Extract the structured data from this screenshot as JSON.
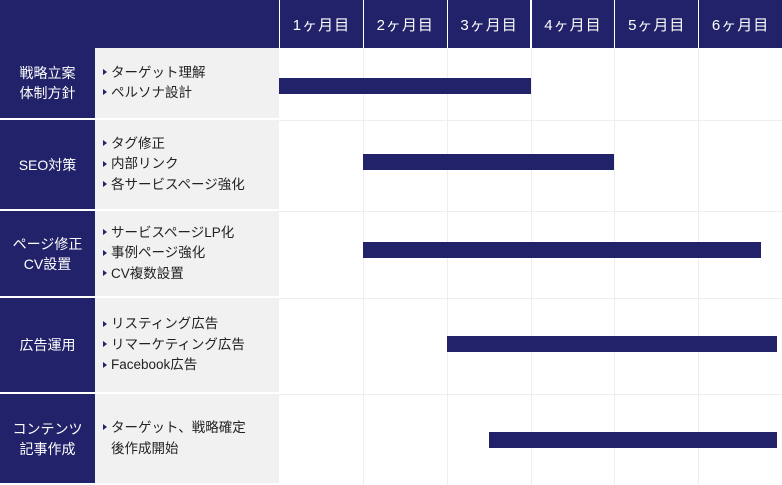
{
  "header": {
    "months": [
      "1ヶ月目",
      "2ヶ月目",
      "3ヶ月目",
      "4ヶ月目",
      "5ヶ月目",
      "6ヶ月目"
    ]
  },
  "rows": [
    {
      "label": "戦略立案\n体制方針",
      "tasks": [
        {
          "text": "ターゲット理解",
          "bullet": true
        },
        {
          "text": "ペルソナ設計",
          "bullet": true
        }
      ],
      "start_month": 0.0,
      "end_month": 3.0
    },
    {
      "label": "SEO対策",
      "tasks": [
        {
          "text": "タグ修正",
          "bullet": true
        },
        {
          "text": "内部リンク",
          "bullet": true
        },
        {
          "text": "各サービスページ強化",
          "bullet": true
        }
      ],
      "start_month": 1.0,
      "end_month": 4.0
    },
    {
      "label": "ページ修正\nCV設置",
      "tasks": [
        {
          "text": "サービスページLP化",
          "bullet": true
        },
        {
          "text": "事例ページ強化",
          "bullet": true
        },
        {
          "text": "CV複数設置",
          "bullet": true
        }
      ],
      "start_month": 1.0,
      "end_month": 5.75
    },
    {
      "label": "広告運用",
      "tasks": [
        {
          "text": "リスティング広告",
          "bullet": true
        },
        {
          "text": "リマーケティング広告",
          "bullet": true
        },
        {
          "text": "Facebook広告",
          "bullet": true
        }
      ],
      "start_month": 2.0,
      "end_month": 6.0
    },
    {
      "label": "コンテンツ\n記事作成",
      "tasks": [
        {
          "text": "ターゲット、戦略確定",
          "bullet": true
        },
        {
          "text": "後作成開始",
          "bullet": false
        }
      ],
      "start_month": 2.5,
      "end_month": 6.0
    }
  ],
  "colors": {
    "accent": "#22226a",
    "task_bg": "#f1f1f1",
    "grid": "#eeeeee"
  }
}
